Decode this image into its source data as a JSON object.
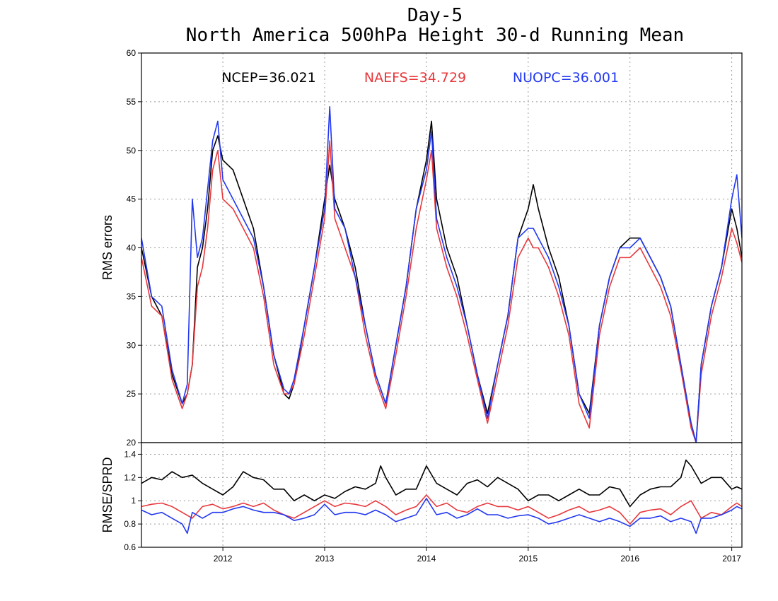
{
  "chart_data": [
    {
      "type": "line",
      "title": "Day-5",
      "subtitle": "North America 500hPa Height 30-d Running Mean",
      "ylabel": "RMS errors",
      "xlabel": "",
      "ylim": [
        20,
        60
      ],
      "y_ticks": [
        "20",
        "25",
        "30",
        "35",
        "40",
        "45",
        "50",
        "55",
        "60"
      ],
      "x_ticks": [
        "2012",
        "2013",
        "2014",
        "2015",
        "2016",
        "2017"
      ],
      "xlim": [
        2011.2,
        2017.1
      ],
      "grid": true,
      "stats": [
        {
          "label": "NCEP=36.021",
          "color": "#000000"
        },
        {
          "label": "NAEFS=34.729",
          "color": "#e8383c"
        },
        {
          "label": "NUOPC=36.001",
          "color": "#2238f0"
        }
      ],
      "series": [
        {
          "name": "NCEP",
          "color": "#000000",
          "x": [
            2011.2,
            2011.3,
            2011.4,
            2011.5,
            2011.6,
            2011.65,
            2011.7,
            2011.75,
            2011.8,
            2011.85,
            2011.9,
            2011.95,
            2012.0,
            2012.1,
            2012.2,
            2012.3,
            2012.4,
            2012.5,
            2012.6,
            2012.65,
            2012.7,
            2012.8,
            2012.9,
            2013.0,
            2013.05,
            2013.1,
            2013.2,
            2013.3,
            2013.4,
            2013.5,
            2013.6,
            2013.7,
            2013.8,
            2013.9,
            2014.0,
            2014.05,
            2014.1,
            2014.2,
            2014.3,
            2014.4,
            2014.5,
            2014.6,
            2014.7,
            2014.8,
            2014.9,
            2015.0,
            2015.05,
            2015.1,
            2015.2,
            2015.3,
            2015.4,
            2015.5,
            2015.6,
            2015.7,
            2015.8,
            2015.9,
            2016.0,
            2016.1,
            2016.2,
            2016.3,
            2016.4,
            2016.5,
            2016.6,
            2016.65,
            2016.7,
            2016.8,
            2016.9,
            2017.0,
            2017.05,
            2017.1
          ],
          "values": [
            40,
            35,
            33,
            27,
            24,
            25,
            28,
            38,
            40,
            44,
            50,
            51.5,
            49,
            48,
            45,
            42,
            36,
            29,
            25,
            24.5,
            26,
            32,
            38,
            45,
            48.5,
            45,
            42,
            38,
            32,
            27,
            24,
            30,
            36,
            44,
            49,
            53,
            45,
            40,
            37,
            32,
            27,
            23,
            28,
            33,
            41,
            44,
            46.5,
            44,
            40,
            37,
            32,
            25,
            23,
            32,
            37,
            40,
            41,
            41,
            39,
            37,
            34,
            28,
            22,
            20,
            28,
            34,
            38,
            44,
            42,
            39
          ]
        },
        {
          "name": "NAEFS",
          "color": "#e8383c",
          "x": [
            2011.2,
            2011.3,
            2011.4,
            2011.5,
            2011.6,
            2011.65,
            2011.7,
            2011.75,
            2011.8,
            2011.85,
            2011.9,
            2011.95,
            2012.0,
            2012.1,
            2012.2,
            2012.3,
            2012.4,
            2012.5,
            2012.6,
            2012.65,
            2012.7,
            2012.8,
            2012.9,
            2013.0,
            2013.05,
            2013.1,
            2013.2,
            2013.3,
            2013.4,
            2013.5,
            2013.6,
            2013.7,
            2013.8,
            2013.9,
            2014.0,
            2014.05,
            2014.1,
            2014.2,
            2014.3,
            2014.4,
            2014.5,
            2014.6,
            2014.7,
            2014.8,
            2014.9,
            2015.0,
            2015.05,
            2015.1,
            2015.2,
            2015.3,
            2015.4,
            2015.5,
            2015.6,
            2015.7,
            2015.8,
            2015.9,
            2016.0,
            2016.1,
            2016.2,
            2016.3,
            2016.4,
            2016.5,
            2016.6,
            2016.65,
            2016.7,
            2016.8,
            2016.9,
            2017.0,
            2017.05,
            2017.1
          ],
          "values": [
            39,
            34,
            33,
            26.5,
            23.5,
            25,
            28,
            36,
            38,
            42,
            48,
            50,
            45,
            44,
            42,
            40,
            35,
            28,
            25,
            25,
            26,
            31,
            37,
            43,
            51,
            43,
            40,
            37,
            31,
            26.5,
            23.5,
            29,
            35,
            42,
            47,
            50,
            42,
            38,
            35,
            31,
            26.5,
            22,
            27,
            32,
            39,
            41,
            40,
            40,
            38,
            35,
            31,
            24,
            21.5,
            31,
            36,
            39,
            39,
            40,
            38,
            36,
            33,
            27.5,
            21.5,
            20,
            27,
            33,
            37,
            42,
            40.5,
            38.5
          ]
        },
        {
          "name": "NUOPC",
          "color": "#2238f0",
          "x": [
            2011.2,
            2011.3,
            2011.4,
            2011.5,
            2011.6,
            2011.65,
            2011.7,
            2011.75,
            2011.8,
            2011.85,
            2011.9,
            2011.95,
            2012.0,
            2012.1,
            2012.2,
            2012.3,
            2012.4,
            2012.5,
            2012.6,
            2012.65,
            2012.7,
            2012.8,
            2012.9,
            2013.0,
            2013.05,
            2013.1,
            2013.2,
            2013.3,
            2013.4,
            2013.5,
            2013.6,
            2013.7,
            2013.8,
            2013.9,
            2014.0,
            2014.05,
            2014.1,
            2014.2,
            2014.3,
            2014.4,
            2014.5,
            2014.6,
            2014.7,
            2014.8,
            2014.9,
            2015.0,
            2015.05,
            2015.1,
            2015.2,
            2015.3,
            2015.4,
            2015.5,
            2015.6,
            2015.7,
            2015.8,
            2015.9,
            2016.0,
            2016.1,
            2016.2,
            2016.3,
            2016.4,
            2016.5,
            2016.6,
            2016.65,
            2016.7,
            2016.8,
            2016.9,
            2017.0,
            2017.05,
            2017.1
          ],
          "values": [
            41,
            35,
            34,
            27.5,
            24,
            26,
            45,
            39,
            41,
            46,
            51,
            53,
            47,
            45,
            43,
            41,
            36,
            29,
            25.5,
            25,
            26.5,
            32,
            38,
            44,
            54.5,
            44,
            42,
            37,
            32,
            27,
            24,
            30,
            36,
            44,
            48,
            52,
            43,
            39,
            36,
            32,
            27,
            22.5,
            28,
            33,
            41,
            42,
            42,
            41,
            39,
            36,
            32,
            25,
            22.5,
            32,
            37,
            40,
            40,
            41,
            39,
            37,
            34,
            28,
            22,
            20,
            28,
            34,
            38,
            45,
            47.5,
            41
          ]
        }
      ]
    },
    {
      "type": "line",
      "title": "",
      "ylabel": "RMSE/SPRD",
      "xlabel": "",
      "ylim": [
        0.6,
        1.5
      ],
      "y_ticks": [
        "0.6",
        "0.8",
        "1",
        "1.2",
        "1.4"
      ],
      "x_ticks": [
        "2012",
        "2013",
        "2014",
        "2015",
        "2016",
        "2017"
      ],
      "xlim": [
        2011.2,
        2017.1
      ],
      "grid": true,
      "series": [
        {
          "name": "NCEP",
          "color": "#000000",
          "x": [
            2011.2,
            2011.3,
            2011.4,
            2011.5,
            2011.6,
            2011.7,
            2011.8,
            2011.9,
            2012.0,
            2012.1,
            2012.2,
            2012.3,
            2012.4,
            2012.5,
            2012.6,
            2012.7,
            2012.8,
            2012.9,
            2013.0,
            2013.1,
            2013.2,
            2013.3,
            2013.4,
            2013.5,
            2013.55,
            2013.6,
            2013.7,
            2013.8,
            2013.9,
            2014.0,
            2014.1,
            2014.2,
            2014.3,
            2014.4,
            2014.5,
            2014.6,
            2014.7,
            2014.8,
            2014.9,
            2015.0,
            2015.1,
            2015.2,
            2015.3,
            2015.4,
            2015.5,
            2015.6,
            2015.7,
            2015.8,
            2015.9,
            2016.0,
            2016.1,
            2016.2,
            2016.3,
            2016.4,
            2016.5,
            2016.55,
            2016.6,
            2016.7,
            2016.8,
            2016.9,
            2017.0,
            2017.05,
            2017.1
          ],
          "values": [
            1.15,
            1.2,
            1.18,
            1.25,
            1.2,
            1.22,
            1.15,
            1.1,
            1.05,
            1.12,
            1.25,
            1.2,
            1.18,
            1.1,
            1.1,
            1.0,
            1.05,
            1.0,
            1.05,
            1.02,
            1.08,
            1.12,
            1.1,
            1.15,
            1.3,
            1.2,
            1.05,
            1.1,
            1.1,
            1.3,
            1.15,
            1.1,
            1.05,
            1.15,
            1.18,
            1.12,
            1.2,
            1.15,
            1.1,
            1.0,
            1.05,
            1.05,
            1.0,
            1.05,
            1.1,
            1.05,
            1.05,
            1.12,
            1.1,
            0.95,
            1.05,
            1.1,
            1.12,
            1.12,
            1.2,
            1.35,
            1.3,
            1.15,
            1.2,
            1.2,
            1.1,
            1.12,
            1.1
          ]
        },
        {
          "name": "NAEFS",
          "color": "#e8383c",
          "x": [
            2011.2,
            2011.3,
            2011.4,
            2011.5,
            2011.6,
            2011.7,
            2011.8,
            2011.9,
            2012.0,
            2012.1,
            2012.2,
            2012.3,
            2012.4,
            2012.5,
            2012.6,
            2012.7,
            2012.8,
            2012.9,
            2013.0,
            2013.1,
            2013.2,
            2013.3,
            2013.4,
            2013.5,
            2013.6,
            2013.7,
            2013.8,
            2013.9,
            2014.0,
            2014.1,
            2014.2,
            2014.3,
            2014.4,
            2014.5,
            2014.6,
            2014.7,
            2014.8,
            2014.9,
            2015.0,
            2015.1,
            2015.2,
            2015.3,
            2015.4,
            2015.5,
            2015.6,
            2015.7,
            2015.8,
            2015.9,
            2016.0,
            2016.1,
            2016.2,
            2016.3,
            2016.4,
            2016.5,
            2016.6,
            2016.7,
            2016.8,
            2016.9,
            2017.0,
            2017.05,
            2017.1
          ],
          "values": [
            0.95,
            0.97,
            0.98,
            0.95,
            0.9,
            0.85,
            0.95,
            0.97,
            0.93,
            0.95,
            0.98,
            0.95,
            0.98,
            0.92,
            0.88,
            0.85,
            0.9,
            0.95,
            1.0,
            0.95,
            0.98,
            0.97,
            0.95,
            1.0,
            0.95,
            0.88,
            0.92,
            0.95,
            1.05,
            0.95,
            0.98,
            0.92,
            0.9,
            0.95,
            0.98,
            0.95,
            0.95,
            0.92,
            0.95,
            0.9,
            0.85,
            0.88,
            0.92,
            0.95,
            0.9,
            0.92,
            0.95,
            0.9,
            0.8,
            0.9,
            0.92,
            0.93,
            0.88,
            0.95,
            1.0,
            0.85,
            0.9,
            0.88,
            0.95,
            0.98,
            0.95
          ]
        },
        {
          "name": "NUOPC",
          "color": "#2238f0",
          "x": [
            2011.2,
            2011.3,
            2011.4,
            2011.5,
            2011.6,
            2011.65,
            2011.7,
            2011.8,
            2011.9,
            2012.0,
            2012.1,
            2012.2,
            2012.3,
            2012.4,
            2012.5,
            2012.6,
            2012.7,
            2012.8,
            2012.9,
            2013.0,
            2013.1,
            2013.2,
            2013.3,
            2013.4,
            2013.5,
            2013.6,
            2013.7,
            2013.8,
            2013.9,
            2014.0,
            2014.1,
            2014.2,
            2014.3,
            2014.4,
            2014.5,
            2014.6,
            2014.7,
            2014.8,
            2014.9,
            2015.0,
            2015.1,
            2015.2,
            2015.3,
            2015.4,
            2015.5,
            2015.6,
            2015.7,
            2015.8,
            2015.9,
            2016.0,
            2016.1,
            2016.2,
            2016.3,
            2016.4,
            2016.5,
            2016.6,
            2016.65,
            2016.7,
            2016.8,
            2016.9,
            2017.0,
            2017.05,
            2017.1
          ],
          "values": [
            0.92,
            0.88,
            0.9,
            0.85,
            0.8,
            0.72,
            0.9,
            0.85,
            0.9,
            0.9,
            0.93,
            0.95,
            0.92,
            0.9,
            0.9,
            0.88,
            0.83,
            0.85,
            0.88,
            0.97,
            0.88,
            0.9,
            0.9,
            0.88,
            0.92,
            0.88,
            0.82,
            0.85,
            0.88,
            1.02,
            0.88,
            0.9,
            0.85,
            0.88,
            0.93,
            0.88,
            0.88,
            0.85,
            0.87,
            0.88,
            0.85,
            0.8,
            0.82,
            0.85,
            0.88,
            0.85,
            0.82,
            0.85,
            0.82,
            0.78,
            0.85,
            0.85,
            0.87,
            0.82,
            0.85,
            0.82,
            0.72,
            0.85,
            0.85,
            0.88,
            0.92,
            0.95,
            0.93
          ]
        }
      ]
    }
  ]
}
